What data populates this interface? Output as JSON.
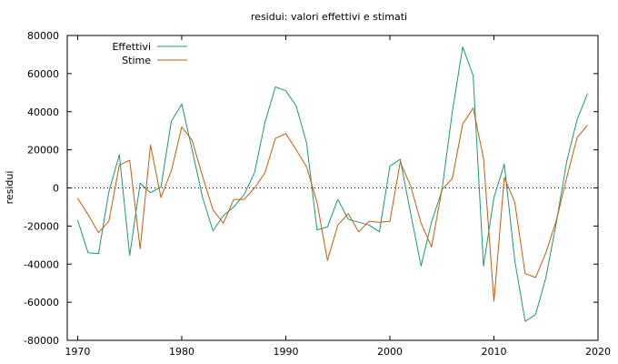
{
  "chart_data": {
    "type": "line",
    "title": "residui: valori effettivi e stimati",
    "xlabel": "",
    "ylabel": "residui",
    "xlim": [
      1969,
      2020
    ],
    "ylim": [
      -80000,
      80000
    ],
    "x_ticks": [
      1970,
      1980,
      1990,
      2000,
      2010,
      2020
    ],
    "y_ticks": [
      -80000,
      -60000,
      -40000,
      -20000,
      0,
      20000,
      40000,
      60000,
      80000
    ],
    "grid": false,
    "zero_line": true,
    "legend_position": "top-left",
    "x": [
      1970,
      1971,
      1972,
      1973,
      1974,
      1975,
      1976,
      1977,
      1978,
      1979,
      1980,
      1981,
      1982,
      1983,
      1984,
      1985,
      1986,
      1987,
      1988,
      1989,
      1990,
      1991,
      1992,
      1993,
      1994,
      1995,
      1996,
      1997,
      1998,
      1999,
      2000,
      2001,
      2002,
      2003,
      2004,
      2005,
      2006,
      2007,
      2008,
      2009,
      2010,
      2011,
      2012,
      2013,
      2014,
      2015,
      2016,
      2017,
      2018,
      2019
    ],
    "series": [
      {
        "name": "Effettivi",
        "color": "#1a9a74",
        "values": [
          -17000,
          -34000,
          -34500,
          -2000,
          17500,
          -35500,
          2500,
          -2500,
          500,
          35000,
          44000,
          20000,
          -5000,
          -22500,
          -14500,
          -10000,
          -3500,
          8000,
          34500,
          53000,
          51000,
          43000,
          23500,
          -22000,
          -20500,
          -6000,
          -16500,
          -18000,
          -19500,
          -23000,
          11500,
          15000,
          -13500,
          -41000,
          -18000,
          -1500,
          40000,
          74000,
          59000,
          -41000,
          -5000,
          12500,
          -38000,
          -70000,
          -66500,
          -47000,
          -18000,
          14000,
          36000,
          49500
        ]
      },
      {
        "name": "Stime",
        "color": "#cc5a0a",
        "values": [
          -5500,
          -14000,
          -23500,
          -17500,
          12000,
          14500,
          -32000,
          22500,
          -5000,
          9000,
          32000,
          25000,
          6000,
          -11500,
          -18500,
          -6000,
          -6000,
          0,
          8000,
          26000,
          28500,
          20000,
          11000,
          -7500,
          -38000,
          -19500,
          -13500,
          -23000,
          -17500,
          -18000,
          -17500,
          13500,
          1000,
          -18500,
          -31000,
          -1000,
          5000,
          33500,
          42000,
          15500,
          -59500,
          5500,
          -7500,
          -45000,
          -47000,
          -34000,
          -17000,
          5500,
          26500,
          33000
        ]
      }
    ]
  }
}
